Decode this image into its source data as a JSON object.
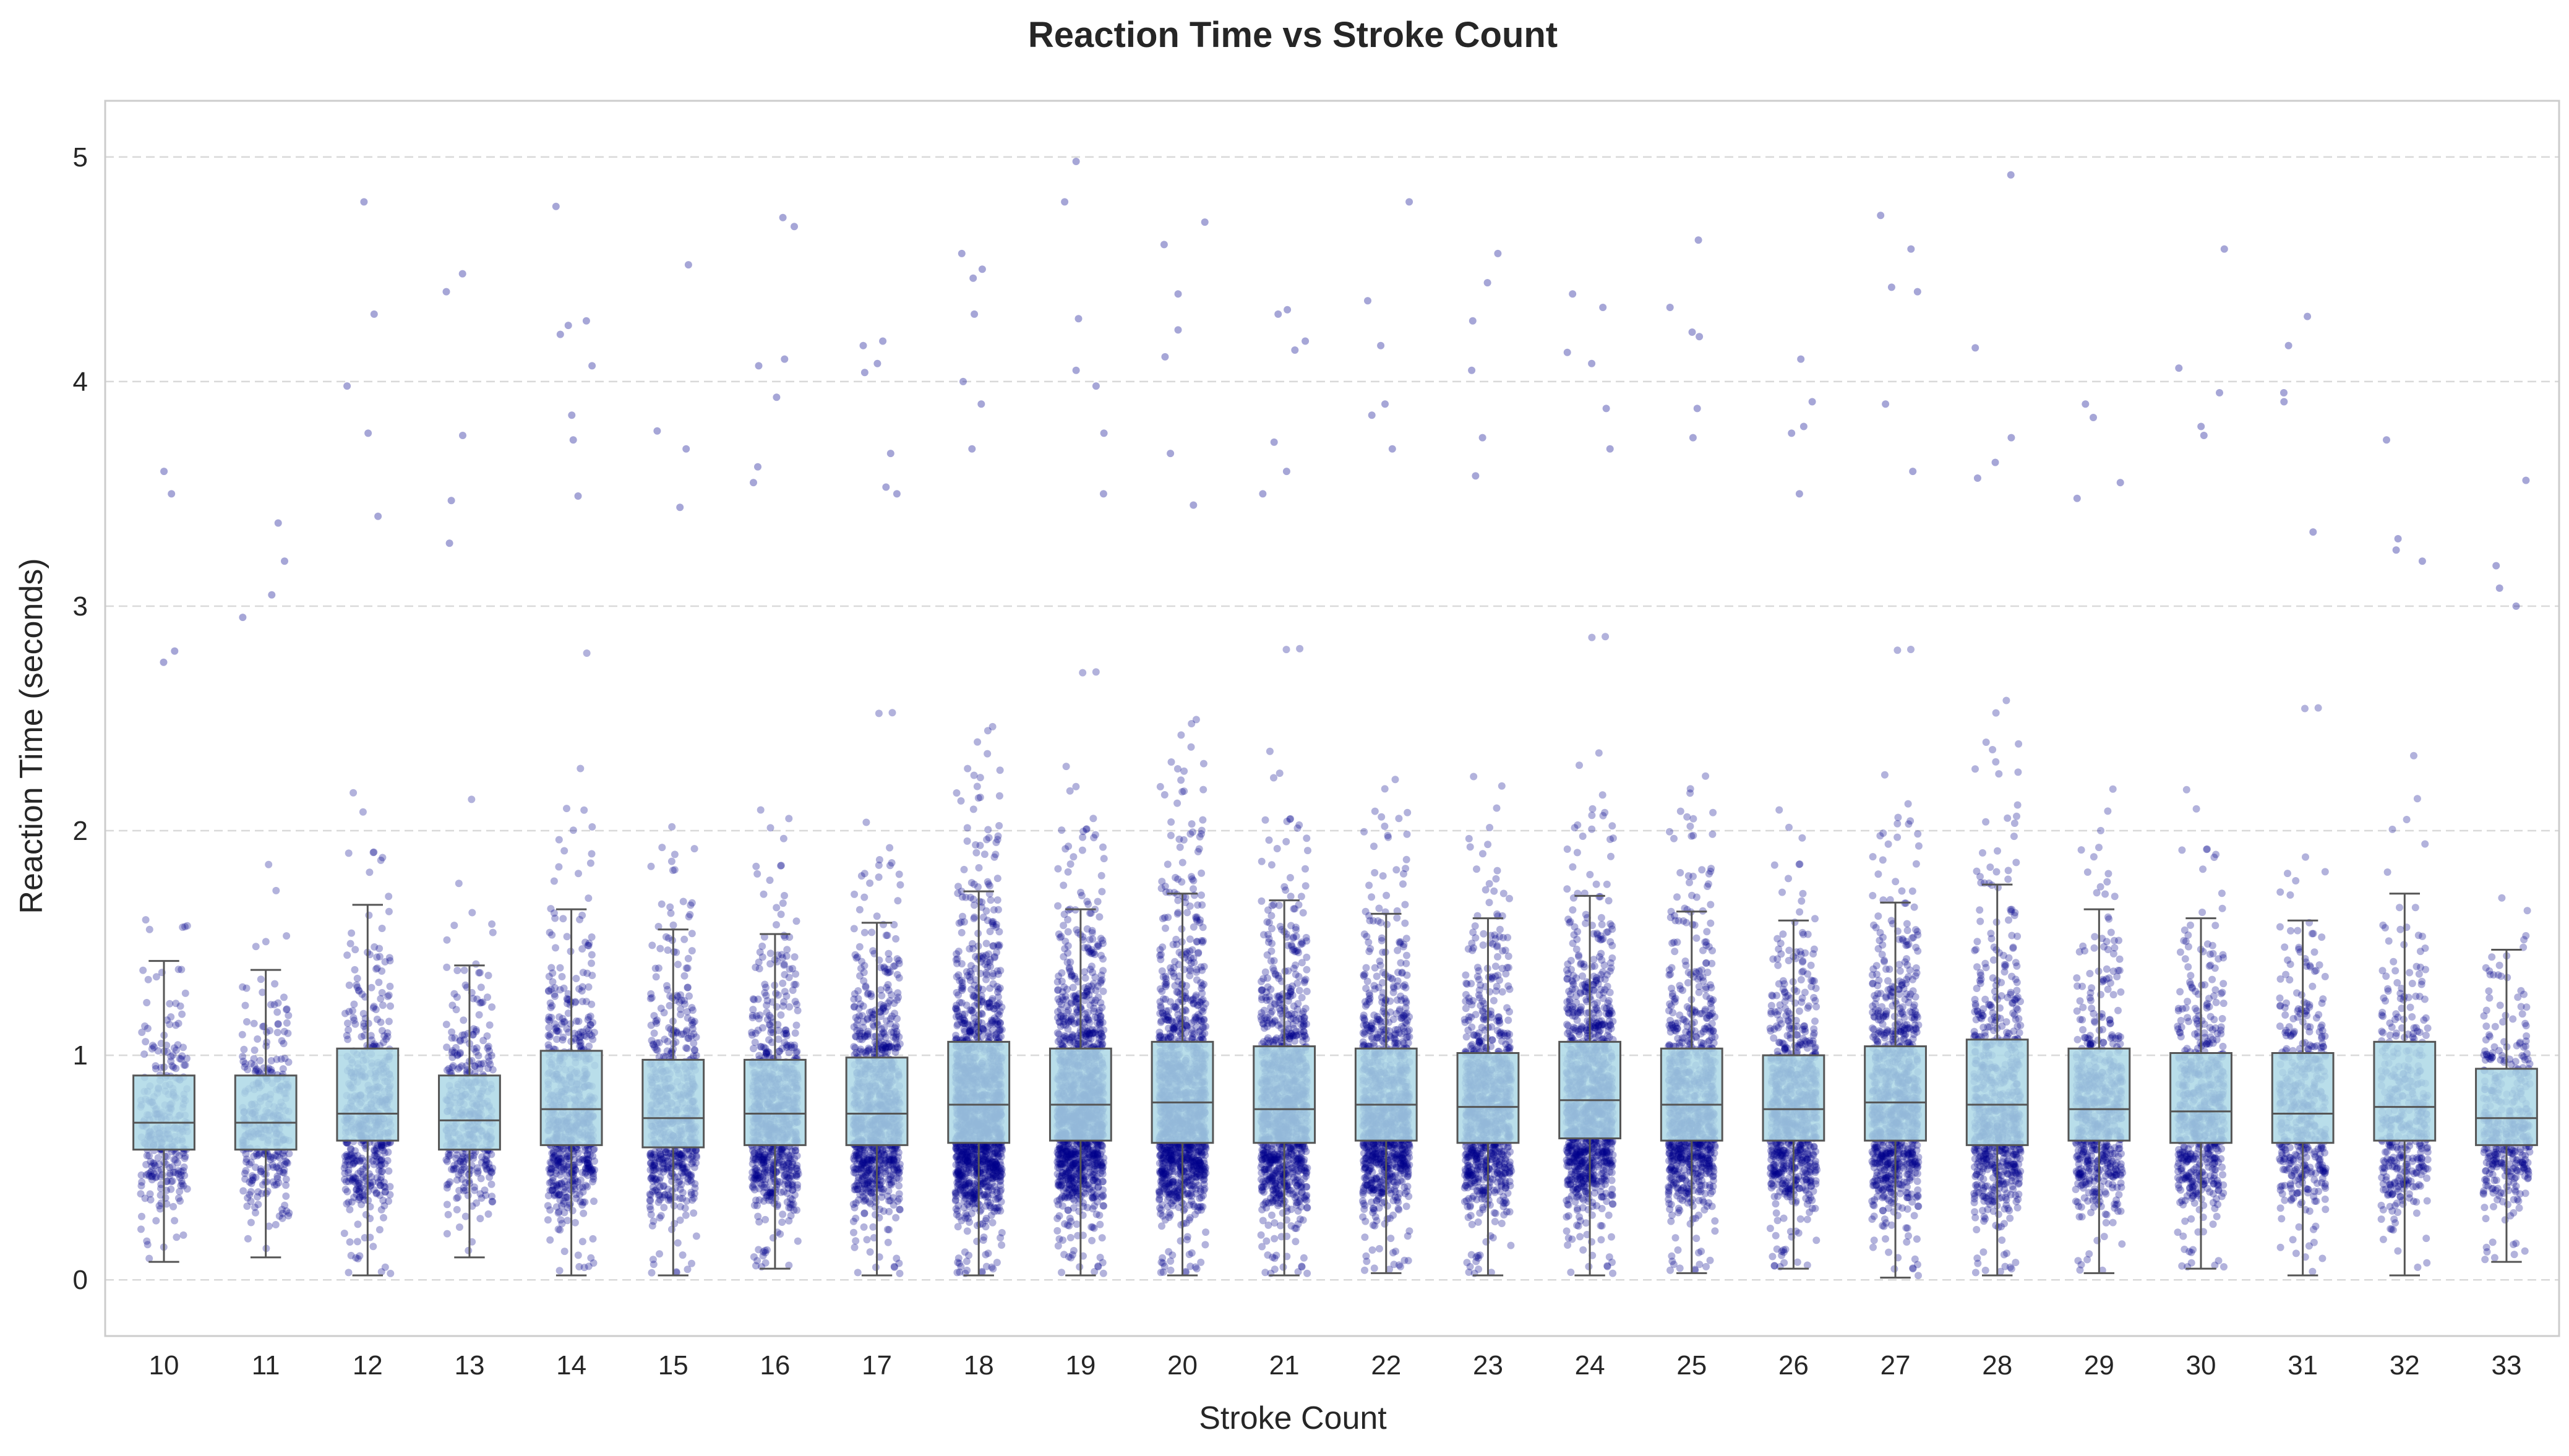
{
  "chart_data": {
    "type": "box",
    "overlay": "strip",
    "title": "Reaction Time vs Stroke Count",
    "xlabel": "Stroke Count",
    "ylabel": "Reaction Time (seconds)",
    "ylim": [
      -0.25,
      5.25
    ],
    "yticks": [
      0,
      1,
      2,
      3,
      4,
      5
    ],
    "grid": "horizontal dashed",
    "colors": {
      "box_fill": "#add8e6",
      "box_edge": "#555555",
      "points": "#00008b",
      "grid": "#d9d9d9",
      "frame": "#cccccc"
    },
    "categories": [
      "10",
      "11",
      "12",
      "13",
      "14",
      "15",
      "16",
      "17",
      "18",
      "19",
      "20",
      "21",
      "22",
      "23",
      "24",
      "25",
      "26",
      "27",
      "28",
      "29",
      "30",
      "31",
      "32",
      "33"
    ],
    "series": [
      {
        "category": "10",
        "q1": 0.58,
        "median": 0.7,
        "q3": 0.91,
        "whisker_low": 0.08,
        "whisker_high": 1.42,
        "n": 300,
        "outliers": [
          2.8,
          2.75,
          3.5,
          3.6
        ]
      },
      {
        "category": "11",
        "q1": 0.58,
        "median": 0.7,
        "q3": 0.91,
        "whisker_low": 0.1,
        "whisker_high": 1.38,
        "n": 320,
        "outliers": [
          3.37,
          3.2,
          3.05,
          2.95
        ]
      },
      {
        "category": "12",
        "q1": 0.62,
        "median": 0.74,
        "q3": 1.03,
        "whisker_low": 0.02,
        "whisker_high": 1.67,
        "n": 500,
        "outliers": [
          4.8,
          4.3,
          3.98,
          3.77,
          3.4
        ]
      },
      {
        "category": "13",
        "q1": 0.58,
        "median": 0.71,
        "q3": 0.91,
        "whisker_low": 0.1,
        "whisker_high": 1.4,
        "n": 380,
        "outliers": [
          4.48,
          4.4,
          3.76,
          3.47,
          3.28
        ]
      },
      {
        "category": "14",
        "q1": 0.6,
        "median": 0.76,
        "q3": 1.02,
        "whisker_low": 0.02,
        "whisker_high": 1.65,
        "n": 650,
        "outliers": [
          4.78,
          4.27,
          4.25,
          4.21,
          4.07,
          3.85,
          3.74,
          3.49
        ]
      },
      {
        "category": "15",
        "q1": 0.59,
        "median": 0.72,
        "q3": 0.98,
        "whisker_low": 0.02,
        "whisker_high": 1.56,
        "n": 600,
        "outliers": [
          4.52,
          3.78,
          3.7,
          3.44
        ]
      },
      {
        "category": "16",
        "q1": 0.6,
        "median": 0.74,
        "q3": 0.98,
        "whisker_low": 0.05,
        "whisker_high": 1.54,
        "n": 800,
        "outliers": [
          4.73,
          4.69,
          4.1,
          4.07,
          3.93,
          3.62,
          3.55
        ]
      },
      {
        "category": "17",
        "q1": 0.6,
        "median": 0.74,
        "q3": 0.99,
        "whisker_low": 0.02,
        "whisker_high": 1.59,
        "n": 900,
        "outliers": [
          4.18,
          4.16,
          4.08,
          4.04,
          3.68,
          3.53,
          3.5
        ]
      },
      {
        "category": "18",
        "q1": 0.61,
        "median": 0.78,
        "q3": 1.06,
        "whisker_low": 0.02,
        "whisker_high": 1.73,
        "n": 1400,
        "outliers": [
          4.57,
          4.5,
          4.46,
          4.3,
          4.0,
          3.9,
          3.7
        ]
      },
      {
        "category": "19",
        "q1": 0.62,
        "median": 0.78,
        "q3": 1.03,
        "whisker_low": 0.02,
        "whisker_high": 1.65,
        "n": 1300,
        "outliers": [
          4.98,
          4.8,
          4.28,
          4.05,
          3.98,
          3.77,
          3.5
        ]
      },
      {
        "category": "20",
        "q1": 0.61,
        "median": 0.79,
        "q3": 1.06,
        "whisker_low": 0.02,
        "whisker_high": 1.72,
        "n": 1300,
        "outliers": [
          4.71,
          4.61,
          4.39,
          4.23,
          4.11,
          3.68,
          3.45
        ]
      },
      {
        "category": "21",
        "q1": 0.61,
        "median": 0.76,
        "q3": 1.04,
        "whisker_low": 0.02,
        "whisker_high": 1.69,
        "n": 1100,
        "outliers": [
          4.32,
          4.3,
          4.18,
          4.14,
          3.73,
          3.6,
          3.5
        ]
      },
      {
        "category": "22",
        "q1": 0.62,
        "median": 0.78,
        "q3": 1.03,
        "whisker_low": 0.03,
        "whisker_high": 1.63,
        "n": 1000,
        "outliers": [
          4.8,
          4.36,
          4.16,
          3.9,
          3.85,
          3.7
        ]
      },
      {
        "category": "23",
        "q1": 0.61,
        "median": 0.77,
        "q3": 1.01,
        "whisker_low": 0.02,
        "whisker_high": 1.61,
        "n": 900,
        "outliers": [
          4.57,
          4.44,
          4.27,
          4.05,
          3.75,
          3.58
        ]
      },
      {
        "category": "24",
        "q1": 0.63,
        "median": 0.8,
        "q3": 1.06,
        "whisker_low": 0.02,
        "whisker_high": 1.71,
        "n": 1100,
        "outliers": [
          4.39,
          4.33,
          4.13,
          4.08,
          3.88,
          3.7
        ]
      },
      {
        "category": "25",
        "q1": 0.62,
        "median": 0.78,
        "q3": 1.03,
        "whisker_low": 0.03,
        "whisker_high": 1.64,
        "n": 900,
        "outliers": [
          4.63,
          4.33,
          4.22,
          4.2,
          3.88,
          3.75
        ]
      },
      {
        "category": "26",
        "q1": 0.62,
        "median": 0.76,
        "q3": 1.0,
        "whisker_low": 0.05,
        "whisker_high": 1.6,
        "n": 800,
        "outliers": [
          4.1,
          3.91,
          3.8,
          3.77,
          3.5
        ]
      },
      {
        "category": "27",
        "q1": 0.62,
        "median": 0.79,
        "q3": 1.04,
        "whisker_low": 0.01,
        "whisker_high": 1.68,
        "n": 900,
        "outliers": [
          4.74,
          4.59,
          4.42,
          4.4,
          3.9,
          3.6
        ]
      },
      {
        "category": "28",
        "q1": 0.6,
        "median": 0.78,
        "q3": 1.07,
        "whisker_low": 0.02,
        "whisker_high": 1.76,
        "n": 700,
        "outliers": [
          4.92,
          4.15,
          3.75,
          3.64,
          3.57
        ]
      },
      {
        "category": "29",
        "q1": 0.62,
        "median": 0.76,
        "q3": 1.03,
        "whisker_low": 0.03,
        "whisker_high": 1.65,
        "n": 600,
        "outliers": [
          3.9,
          3.84,
          3.55,
          3.48
        ]
      },
      {
        "category": "30",
        "q1": 0.61,
        "median": 0.75,
        "q3": 1.01,
        "whisker_low": 0.05,
        "whisker_high": 1.61,
        "n": 600,
        "outliers": [
          4.59,
          4.06,
          3.95,
          3.8,
          3.76
        ]
      },
      {
        "category": "31",
        "q1": 0.61,
        "median": 0.74,
        "q3": 1.01,
        "whisker_low": 0.02,
        "whisker_high": 1.6,
        "n": 450,
        "outliers": [
          4.29,
          4.16,
          3.95,
          3.91,
          3.33
        ]
      },
      {
        "category": "32",
        "q1": 0.62,
        "median": 0.77,
        "q3": 1.06,
        "whisker_low": 0.02,
        "whisker_high": 1.72,
        "n": 400,
        "outliers": [
          3.74,
          3.3,
          3.25,
          3.2
        ]
      },
      {
        "category": "33",
        "q1": 0.6,
        "median": 0.72,
        "q3": 0.94,
        "whisker_low": 0.08,
        "whisker_high": 1.47,
        "n": 400,
        "outliers": [
          3.56,
          3.18,
          3.08,
          3.0
        ]
      }
    ]
  }
}
